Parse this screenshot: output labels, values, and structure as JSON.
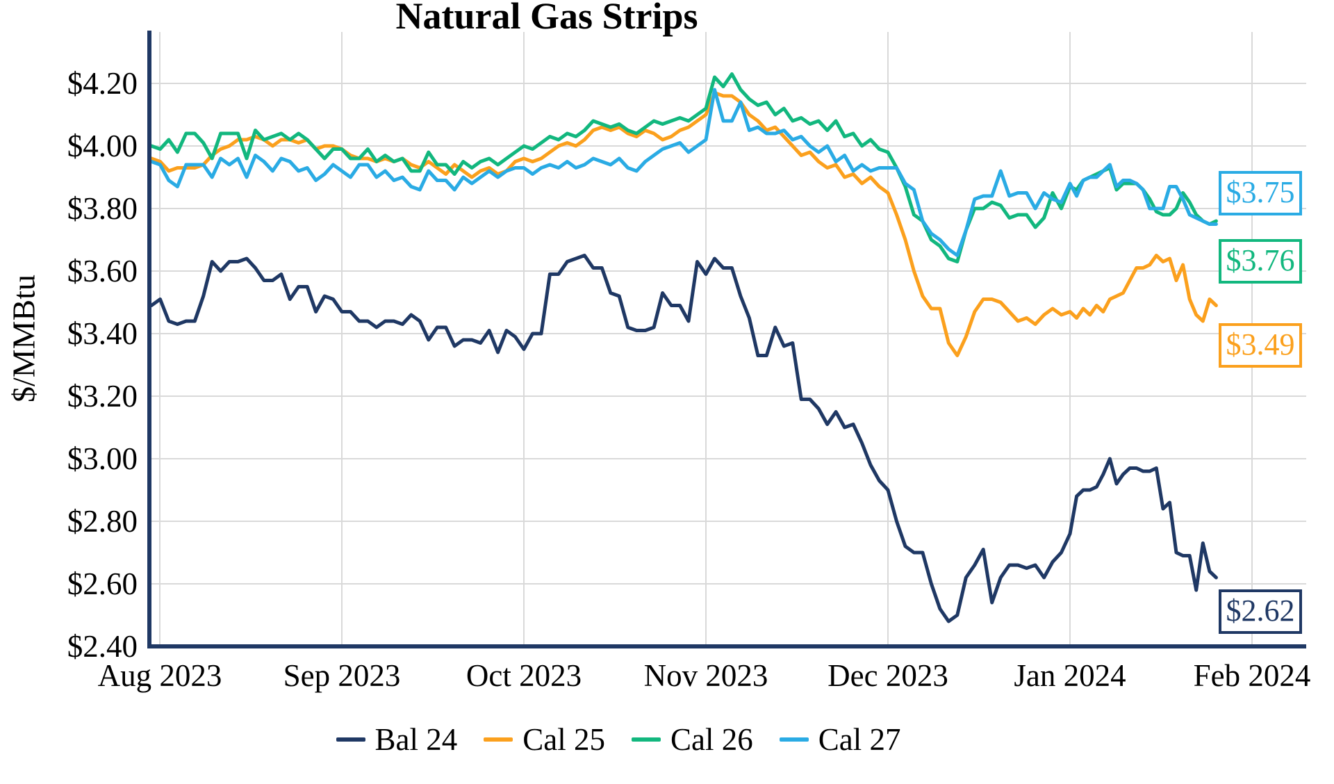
{
  "title": "Natural Gas Strips",
  "y_axis": {
    "label": "$/MMBtu",
    "tick_labels": [
      "$4.20",
      "$4.00",
      "$3.80",
      "$3.60",
      "$3.40",
      "$3.20",
      "$3.00",
      "$2.80",
      "$2.60",
      "$2.40"
    ],
    "min": 2.4,
    "max": 4.2,
    "step": 0.2
  },
  "x_axis": {
    "tick_labels": [
      "Aug 2023",
      "Sep 2023",
      "Oct 2023",
      "Nov 2023",
      "Dec 2023",
      "Jan 2024",
      "Feb 2024"
    ]
  },
  "legend": [
    {
      "label": "Bal 24",
      "color": "#1f3864"
    },
    {
      "label": "Cal 25",
      "color": "#fba01d"
    },
    {
      "label": "Cal 26",
      "color": "#12b77e"
    },
    {
      "label": "Cal 27",
      "color": "#2aabe4"
    }
  ],
  "end_labels": [
    {
      "text": "$3.75",
      "series": "Cal 27",
      "value": 3.75,
      "color": "#2aabe4"
    },
    {
      "text": "$3.76",
      "series": "Cal 26",
      "value": 3.76,
      "color": "#12b77e"
    },
    {
      "text": "$3.49",
      "series": "Cal 25",
      "value": 3.49,
      "color": "#fba01d"
    },
    {
      "text": "$2.62",
      "series": "Bal 24",
      "value": 2.62,
      "color": "#1f3864"
    }
  ],
  "chart_data": {
    "type": "line",
    "title": "Natural Gas Strips",
    "xlabel": "",
    "ylabel": "$/MMBtu",
    "ylim": [
      2.4,
      4.36
    ],
    "grid": true,
    "legend_position": "bottom",
    "x_months": [
      "Aug 2023",
      "Sep 2023",
      "Oct 2023",
      "Nov 2023",
      "Dec 2023",
      "Jan 2024"
    ],
    "note_last_point": "data ends about Jan 25, 2024",
    "series": [
      {
        "name": "Bal 24",
        "color": "#1f3864",
        "end_value": 2.62,
        "values_by_month": {
          "Aug 2023": [
            3.49,
            3.51,
            3.44,
            3.43,
            3.44,
            3.44,
            3.52,
            3.63,
            3.6,
            3.63,
            3.63,
            3.64,
            3.61,
            3.57,
            3.57,
            3.59,
            3.51,
            3.55,
            3.55,
            3.47,
            3.52,
            3.51
          ],
          "Sep 2023": [
            3.47,
            3.47,
            3.44,
            3.44,
            3.42,
            3.44,
            3.44,
            3.43,
            3.46,
            3.44,
            3.38,
            3.42,
            3.42,
            3.36,
            3.38,
            3.38,
            3.37,
            3.41,
            3.34,
            3.41,
            3.39
          ],
          "Oct 2023": [
            3.35,
            3.4,
            3.4,
            3.59,
            3.59,
            3.63,
            3.64,
            3.65,
            3.61,
            3.61,
            3.53,
            3.52,
            3.42,
            3.41,
            3.41,
            3.42,
            3.53,
            3.49,
            3.49,
            3.44,
            3.63
          ],
          "Nov 2023": [
            3.59,
            3.64,
            3.61,
            3.61,
            3.52,
            3.45,
            3.33,
            3.33,
            3.42,
            3.36,
            3.37,
            3.19,
            3.19,
            3.16,
            3.11,
            3.15,
            3.1,
            3.11,
            3.05,
            2.98,
            2.93
          ],
          "Dec 2023": [
            2.9,
            2.8,
            2.72,
            2.7,
            2.7,
            2.6,
            2.52,
            2.48,
            2.5,
            2.62,
            2.66,
            2.71,
            2.54,
            2.62,
            2.66,
            2.66,
            2.65,
            2.66,
            2.62,
            2.67,
            2.7
          ],
          "Jan 2024": [
            2.76,
            2.88,
            2.9,
            2.9,
            2.91,
            2.95,
            3.0,
            2.92,
            2.95,
            2.97,
            2.97,
            2.96,
            2.96,
            2.97,
            2.84,
            2.86,
            2.7,
            2.69,
            2.69,
            2.58,
            2.73,
            2.64,
            2.62
          ]
        }
      },
      {
        "name": "Cal 25",
        "color": "#fba01d",
        "end_value": 3.49,
        "values_by_month": {
          "Aug 2023": [
            3.96,
            3.95,
            3.92,
            3.93,
            3.93,
            3.93,
            3.94,
            3.97,
            3.99,
            4.0,
            4.02,
            4.02,
            4.03,
            4.02,
            4.0,
            4.02,
            4.02,
            4.01,
            4.02,
            3.99,
            4.0,
            4.0
          ],
          "Sep 2023": [
            3.99,
            3.97,
            3.96,
            3.96,
            3.95,
            3.96,
            3.95,
            3.96,
            3.94,
            3.93,
            3.95,
            3.93,
            3.91,
            3.94,
            3.92,
            3.9,
            3.92,
            3.93,
            3.91,
            3.92,
            3.95
          ],
          "Oct 2023": [
            3.96,
            3.95,
            3.96,
            3.98,
            4.0,
            4.01,
            4.0,
            4.02,
            4.05,
            4.06,
            4.05,
            4.06,
            4.04,
            4.03,
            4.05,
            4.04,
            4.02,
            4.03,
            4.05,
            4.06,
            4.08
          ],
          "Nov 2023": [
            4.1,
            4.17,
            4.16,
            4.16,
            4.14,
            4.1,
            4.08,
            4.05,
            4.06,
            4.03,
            4.0,
            3.97,
            3.98,
            3.95,
            3.93,
            3.94,
            3.9,
            3.91,
            3.88,
            3.9,
            3.87
          ],
          "Dec 2023": [
            3.85,
            3.78,
            3.7,
            3.6,
            3.52,
            3.48,
            3.48,
            3.37,
            3.33,
            3.39,
            3.47,
            3.51,
            3.51,
            3.5,
            3.47,
            3.44,
            3.45,
            3.43,
            3.46,
            3.48,
            3.46
          ],
          "Jan 2024": [
            3.47,
            3.45,
            3.48,
            3.46,
            3.49,
            3.47,
            3.51,
            3.52,
            3.53,
            3.57,
            3.61,
            3.61,
            3.62,
            3.65,
            3.63,
            3.64,
            3.57,
            3.62,
            3.51,
            3.46,
            3.44,
            3.51,
            3.49
          ]
        }
      },
      {
        "name": "Cal 26",
        "color": "#12b77e",
        "end_value": 3.76,
        "values_by_month": {
          "Aug 2023": [
            4.0,
            3.99,
            4.02,
            3.98,
            4.04,
            4.04,
            4.01,
            3.96,
            4.04,
            4.04,
            4.04,
            3.96,
            4.05,
            4.02,
            4.03,
            4.04,
            4.02,
            4.04,
            4.02,
            3.99,
            3.96,
            3.99
          ],
          "Sep 2023": [
            3.99,
            3.96,
            3.96,
            3.99,
            3.95,
            3.97,
            3.95,
            3.96,
            3.92,
            3.92,
            3.98,
            3.94,
            3.94,
            3.91,
            3.95,
            3.93,
            3.95,
            3.96,
            3.94,
            3.96,
            3.98
          ],
          "Oct 2023": [
            4.0,
            3.99,
            4.01,
            4.03,
            4.02,
            4.04,
            4.03,
            4.05,
            4.08,
            4.07,
            4.06,
            4.07,
            4.05,
            4.04,
            4.06,
            4.08,
            4.07,
            4.08,
            4.09,
            4.08,
            4.1
          ],
          "Nov 2023": [
            4.12,
            4.22,
            4.19,
            4.23,
            4.18,
            4.15,
            4.13,
            4.14,
            4.1,
            4.12,
            4.08,
            4.09,
            4.07,
            4.08,
            4.05,
            4.08,
            4.03,
            4.04,
            4.0,
            4.02,
            3.99
          ],
          "Dec 2023": [
            3.98,
            3.93,
            3.87,
            3.78,
            3.76,
            3.7,
            3.68,
            3.64,
            3.63,
            3.73,
            3.8,
            3.8,
            3.82,
            3.81,
            3.77,
            3.78,
            3.78,
            3.74,
            3.77,
            3.85,
            3.8
          ],
          "Jan 2024": [
            3.87,
            3.86,
            3.89,
            3.9,
            3.91,
            3.92,
            3.93,
            3.86,
            3.88,
            3.88,
            3.88,
            3.86,
            3.83,
            3.79,
            3.78,
            3.78,
            3.8,
            3.85,
            3.82,
            3.78,
            3.76,
            3.75,
            3.76
          ]
        }
      },
      {
        "name": "Cal 27",
        "color": "#2aabe4",
        "end_value": 3.75,
        "values_by_month": {
          "Aug 2023": [
            3.95,
            3.94,
            3.89,
            3.87,
            3.94,
            3.94,
            3.94,
            3.9,
            3.96,
            3.94,
            3.96,
            3.9,
            3.97,
            3.95,
            3.92,
            3.96,
            3.95,
            3.92,
            3.93,
            3.89,
            3.91,
            3.94
          ],
          "Sep 2023": [
            3.92,
            3.9,
            3.94,
            3.94,
            3.9,
            3.92,
            3.89,
            3.9,
            3.87,
            3.86,
            3.92,
            3.89,
            3.89,
            3.86,
            3.9,
            3.88,
            3.9,
            3.92,
            3.9,
            3.92,
            3.93
          ],
          "Oct 2023": [
            3.93,
            3.91,
            3.93,
            3.94,
            3.93,
            3.95,
            3.93,
            3.94,
            3.96,
            3.95,
            3.94,
            3.96,
            3.93,
            3.92,
            3.95,
            3.97,
            3.99,
            4.0,
            4.01,
            3.98,
            4.0
          ],
          "Nov 2023": [
            4.02,
            4.18,
            4.08,
            4.08,
            4.14,
            4.05,
            4.06,
            4.04,
            4.04,
            4.05,
            4.02,
            4.03,
            4.0,
            3.98,
            4.0,
            3.95,
            3.97,
            3.92,
            3.94,
            3.92,
            3.93
          ],
          "Dec 2023": [
            3.93,
            3.93,
            3.88,
            3.86,
            3.76,
            3.72,
            3.7,
            3.67,
            3.65,
            3.73,
            3.83,
            3.84,
            3.84,
            3.92,
            3.84,
            3.85,
            3.85,
            3.8,
            3.85,
            3.83,
            3.82
          ],
          "Jan 2024": [
            3.88,
            3.84,
            3.89,
            3.9,
            3.9,
            3.92,
            3.94,
            3.87,
            3.89,
            3.89,
            3.88,
            3.86,
            3.8,
            3.8,
            3.8,
            3.87,
            3.87,
            3.83,
            3.78,
            3.77,
            3.76,
            3.75,
            3.75
          ]
        }
      }
    ],
    "grid_color": "#d9d9d9",
    "axis_color": "#1f3864"
  }
}
